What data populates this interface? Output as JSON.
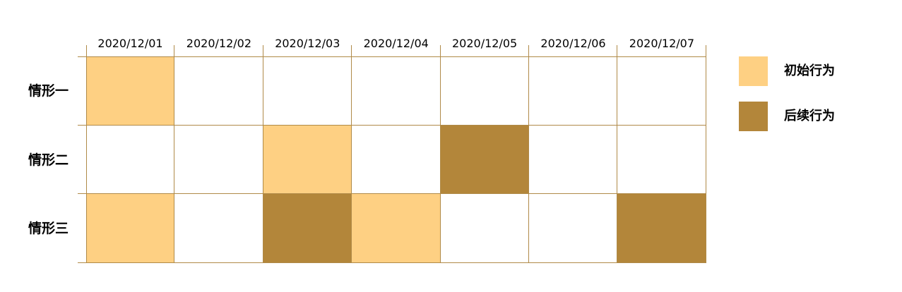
{
  "colors": {
    "initial": "#fed083",
    "followup": "#b3863a",
    "grid": "#b08a48"
  },
  "dates": [
    "2020/12/01",
    "2020/12/02",
    "2020/12/03",
    "2020/12/04",
    "2020/12/05",
    "2020/12/06",
    "2020/12/07"
  ],
  "rows": [
    {
      "label": "情形一",
      "cells": [
        "initial",
        "",
        "",
        "",
        "",
        "",
        ""
      ]
    },
    {
      "label": "情形二",
      "cells": [
        "",
        "",
        "initial",
        "",
        "followup",
        "",
        ""
      ]
    },
    {
      "label": "情形三",
      "cells": [
        "initial",
        "",
        "followup",
        "initial",
        "",
        "",
        "followup"
      ]
    }
  ],
  "legend": [
    {
      "key": "initial",
      "label": "初始行为"
    },
    {
      "key": "followup",
      "label": "后续行为"
    }
  ]
}
